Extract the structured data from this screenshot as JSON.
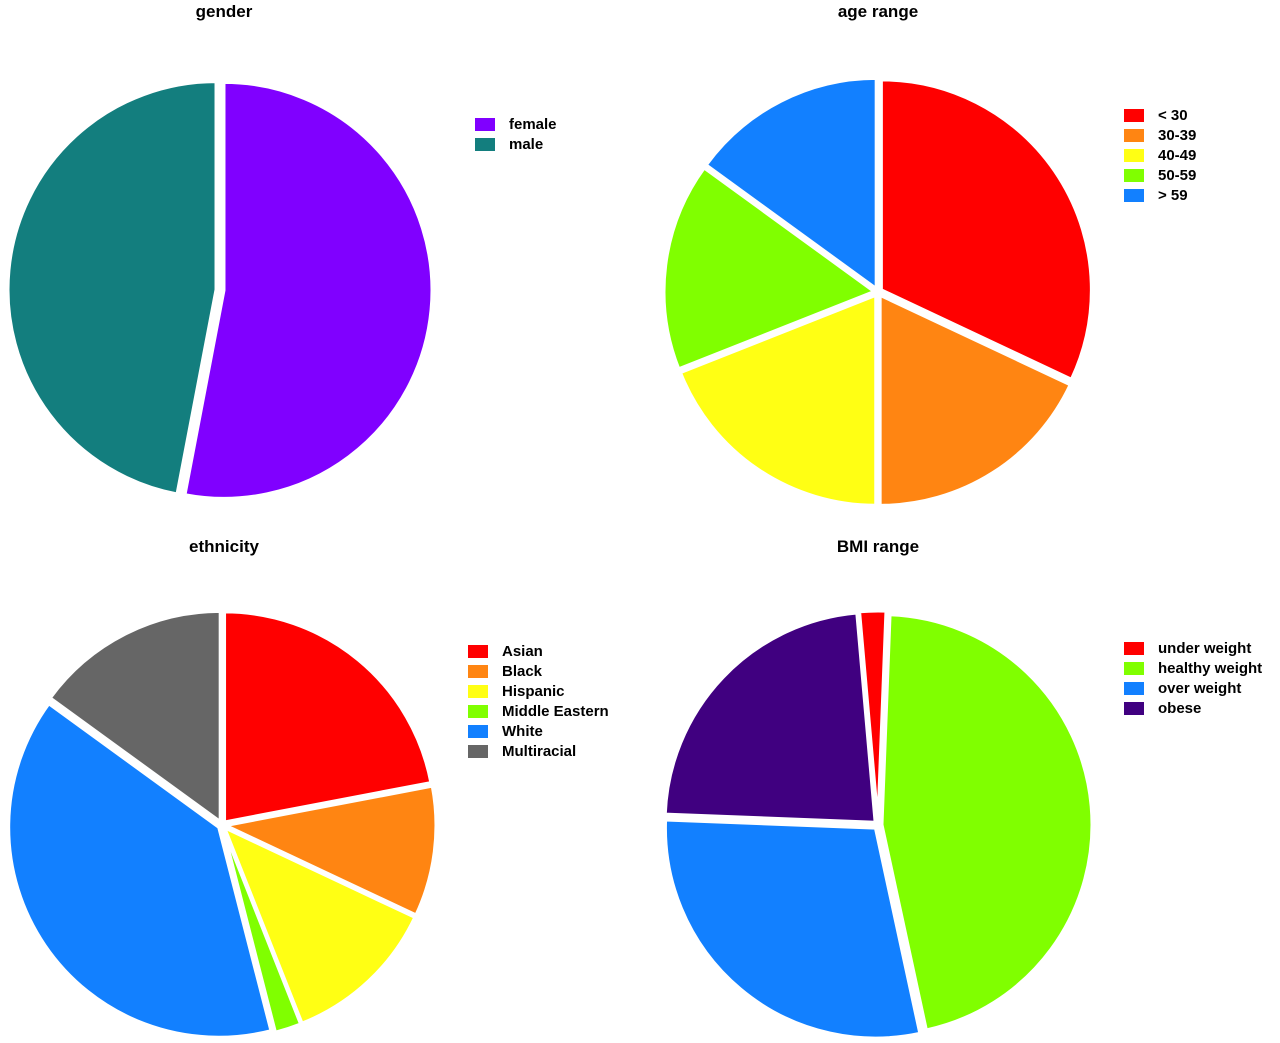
{
  "chart_data": [
    {
      "type": "pie",
      "title": "gender",
      "categories": [
        "female",
        "male"
      ],
      "values": [
        53,
        47
      ],
      "colors": [
        "#8000ff",
        "#137e7e"
      ],
      "start_angle_deg": 0,
      "legend_position": "right"
    },
    {
      "type": "pie",
      "title": "age range",
      "categories": [
        "< 30",
        "30-39",
        "40-49",
        "50-59",
        "> 59"
      ],
      "values": [
        32,
        18,
        19,
        16,
        15
      ],
      "colors": [
        "#ff0000",
        "#ff8512",
        "#ffff14",
        "#80ff00",
        "#1280ff"
      ],
      "start_angle_deg": 0,
      "legend_position": "right"
    },
    {
      "type": "pie",
      "title": "ethnicity",
      "categories": [
        "Asian",
        "Black",
        "Hispanic",
        "Middle Eastern",
        "White",
        "Multiracial"
      ],
      "values": [
        22,
        10,
        12,
        2,
        39,
        15
      ],
      "colors": [
        "#ff0000",
        "#ff8512",
        "#ffff14",
        "#80ff00",
        "#1280ff",
        "#666666"
      ],
      "start_angle_deg": 0,
      "legend_position": "right"
    },
    {
      "type": "pie",
      "title": "BMI range",
      "categories": [
        "under weight",
        "healthy weight",
        "over weight",
        "obese"
      ],
      "values": [
        2,
        46,
        29,
        23
      ],
      "colors": [
        "#ff0000",
        "#80ff00",
        "#1280ff",
        "#400080"
      ],
      "start_angle_deg": -5,
      "legend_position": "right"
    }
  ]
}
